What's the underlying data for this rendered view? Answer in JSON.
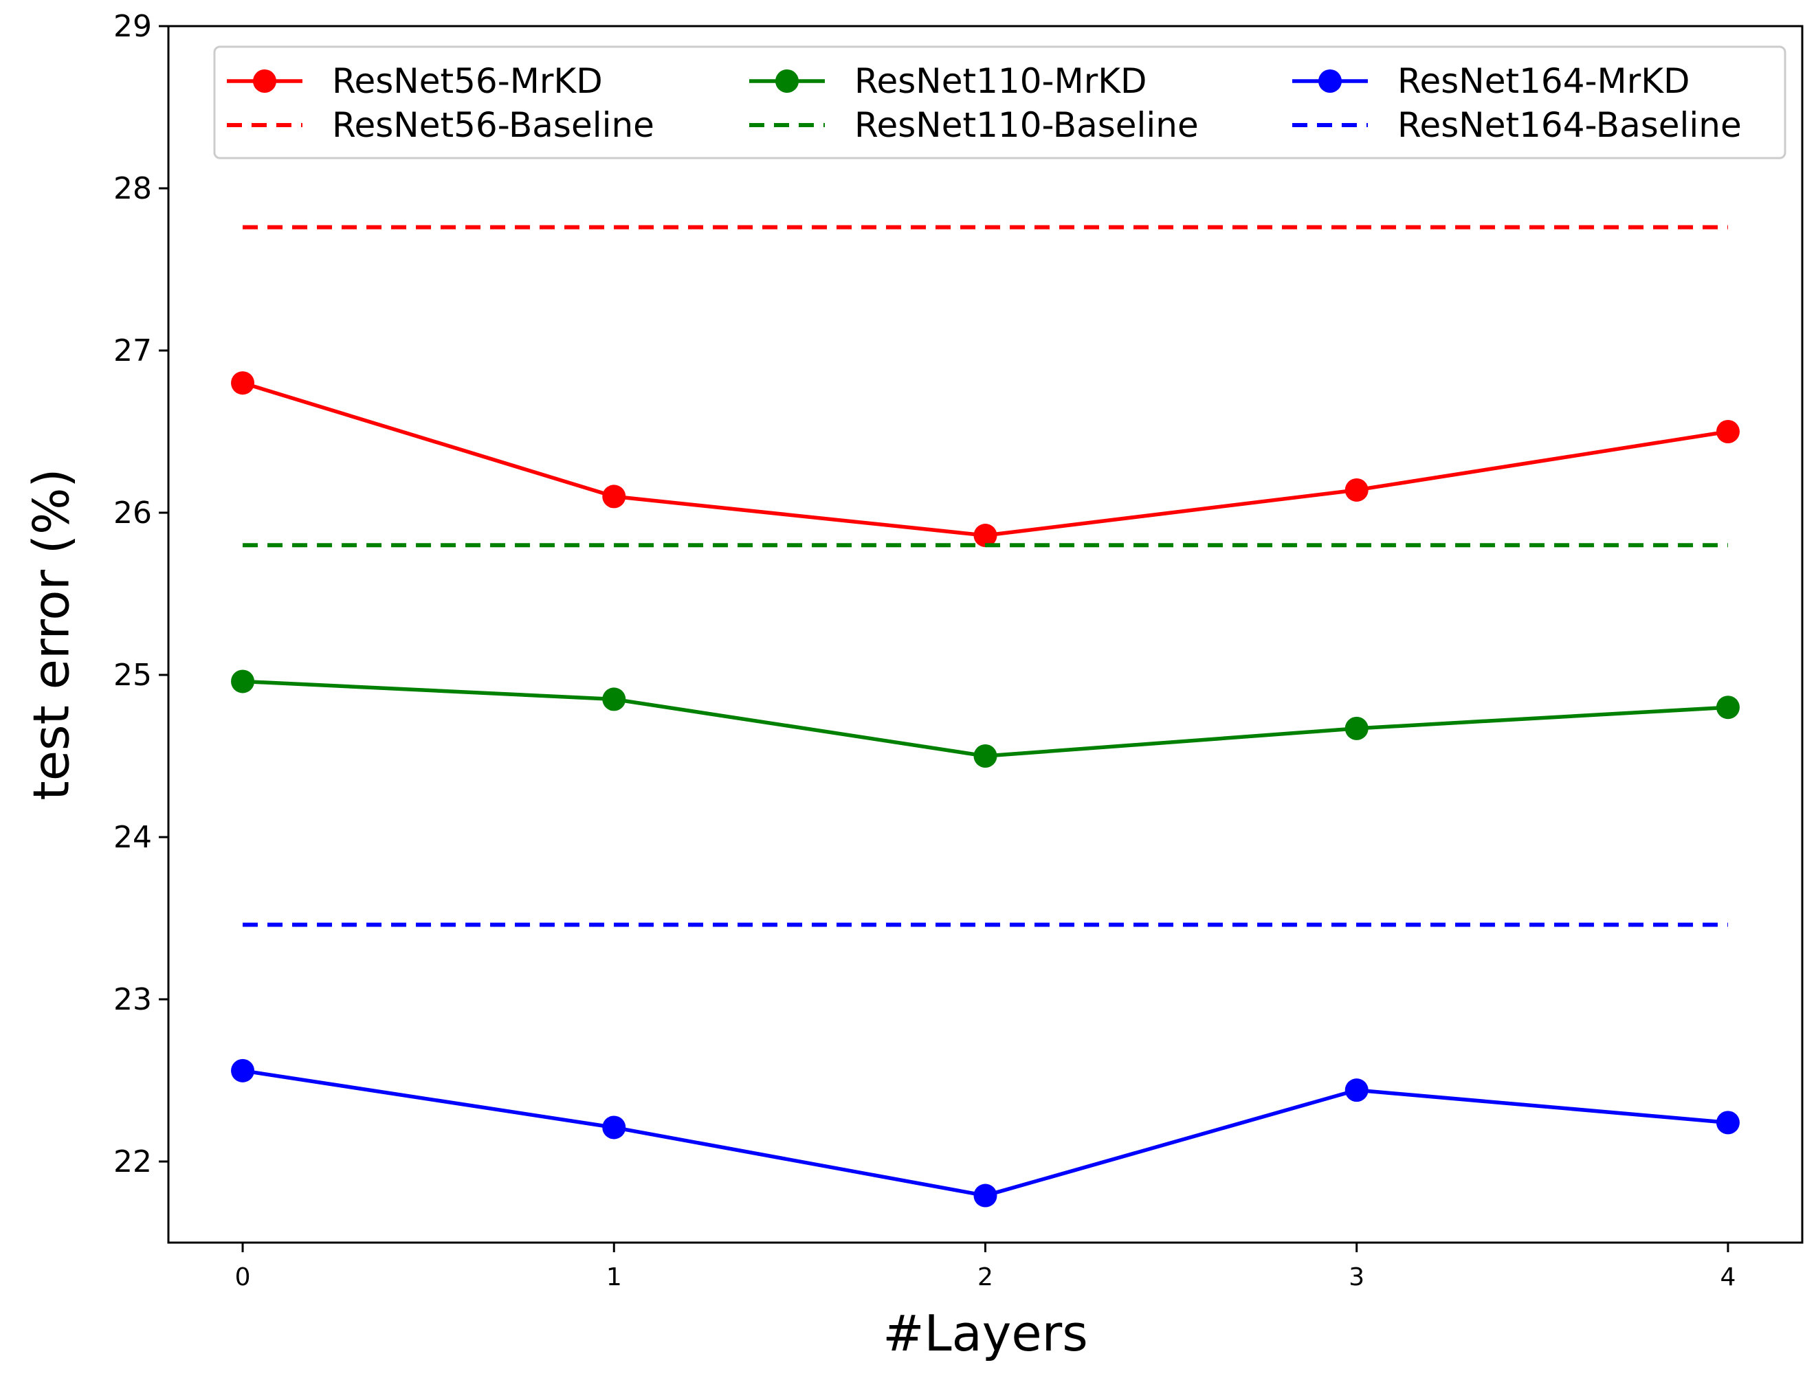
{
  "chart_data": {
    "type": "line",
    "title": "",
    "xlabel": "#Layers",
    "ylabel": "test error (%)",
    "x": [
      0,
      1,
      2,
      3,
      4
    ],
    "x_ticks": [
      "0",
      "1",
      "2",
      "3",
      "4"
    ],
    "xlim": [
      -0.2,
      4.2
    ],
    "ylim": [
      21.5,
      29
    ],
    "y_ticks": [
      "22",
      "23",
      "24",
      "25",
      "26",
      "27",
      "28",
      "29"
    ],
    "grid": false,
    "legend_placement": "top",
    "series": [
      {
        "name": "ResNet56-MrKD",
        "color": "#ff0000",
        "style": "solid-marker",
        "values": [
          26.8,
          26.1,
          25.86,
          26.14,
          26.5
        ]
      },
      {
        "name": "ResNet110-MrKD",
        "color": "#008000",
        "style": "solid-marker",
        "values": [
          24.96,
          24.85,
          24.5,
          24.67,
          24.8
        ]
      },
      {
        "name": "ResNet164-MrKD",
        "color": "#0000ff",
        "style": "solid-marker",
        "values": [
          22.56,
          22.21,
          21.79,
          22.44,
          22.24
        ]
      },
      {
        "name": "ResNet56-Baseline",
        "color": "#ff0000",
        "style": "dashed",
        "values": [
          27.76,
          27.76,
          27.76,
          27.76,
          27.76
        ]
      },
      {
        "name": "ResNet110-Baseline",
        "color": "#008000",
        "style": "dashed",
        "values": [
          25.8,
          25.8,
          25.8,
          25.8,
          25.8
        ]
      },
      {
        "name": "ResNet164-Baseline",
        "color": "#0000ff",
        "style": "dashed",
        "values": [
          23.46,
          23.46,
          23.46,
          23.46,
          23.46
        ]
      }
    ],
    "legend_order": [
      "ResNet56-MrKD",
      "ResNet110-MrKD",
      "ResNet164-MrKD",
      "ResNet56-Baseline",
      "ResNet110-Baseline",
      "ResNet164-Baseline"
    ]
  }
}
